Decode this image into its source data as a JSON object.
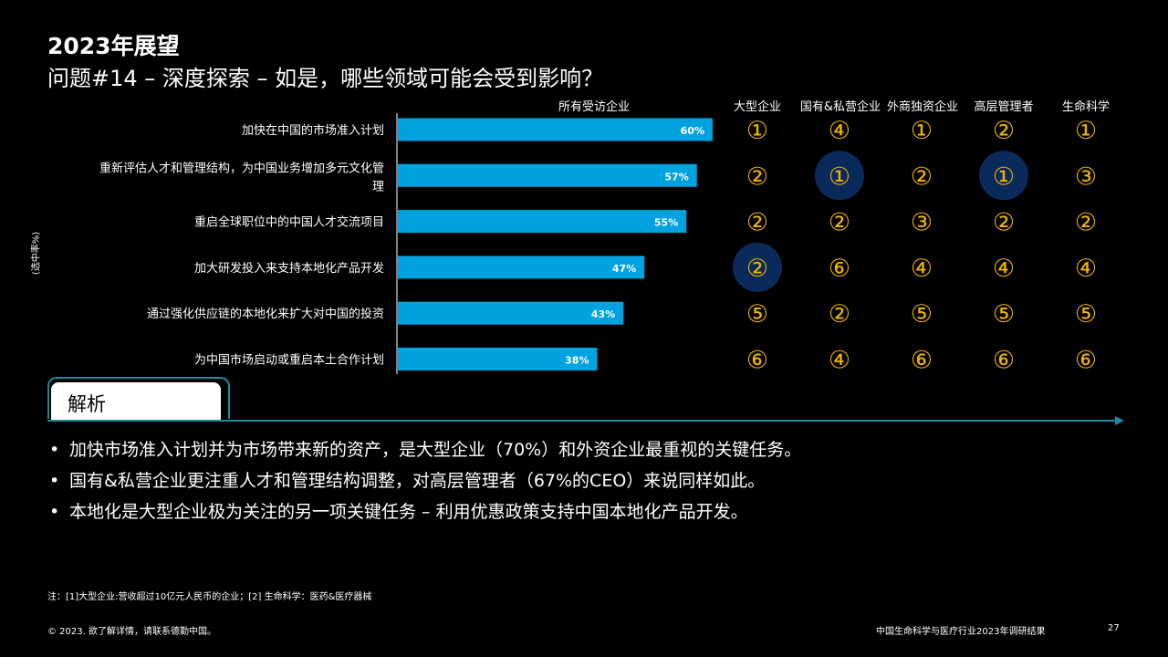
{
  "header": {
    "title_line1": "2023年展望",
    "title_line2": "问题#14 – 深度探索 – 如是，哪些领域可能会受到影响？"
  },
  "y_axis_note": "(选中率%)",
  "columns": {
    "all": "所有受访企业",
    "c1": "大型企业",
    "c2": "国有&私营企业",
    "c3": "外商独资企业",
    "c4": "高层管理者",
    "c5": "生命科学"
  },
  "chart_data": {
    "type": "bar",
    "orientation": "horizontal",
    "title": "所有受访企业",
    "categories": [
      [
        "加快在中国的市场准入计划"
      ],
      [
        "重新评估人才和管理结构，为中国业务增加多元文化管",
        "理"
      ],
      [
        "重启全球职位中的中国人才交流项目"
      ],
      [
        "加大研发投入来支持本地化产品开发"
      ],
      [
        "通过强化供应链的本地化来扩大对中国的投资"
      ],
      [
        "为中国市场启动或重启本土合作计划"
      ]
    ],
    "values": [
      60,
      57,
      55,
      47,
      43,
      38
    ],
    "value_labels": [
      "60%",
      "57%",
      "55%",
      "47%",
      "43%",
      "38%"
    ],
    "xlim": [
      0,
      100
    ],
    "ylabel": "(选中率%)",
    "bar_color": "#00a3e0",
    "rank_color": "#f2b400",
    "highlight_color": "#0b2a5c",
    "rank_table": {
      "columns": [
        "大型企业",
        "国有&私营企业",
        "外商独资企业",
        "高层管理者",
        "生命科学"
      ],
      "rows": [
        [
          "①",
          "④",
          "①",
          "②",
          "①"
        ],
        [
          "②",
          "①",
          "②",
          "①",
          "③"
        ],
        [
          "②",
          "②",
          "③",
          "②",
          "②"
        ],
        [
          "②",
          "⑥",
          "④",
          "④",
          "④"
        ],
        [
          "⑤",
          "②",
          "⑤",
          "⑤",
          "⑤"
        ],
        [
          "⑥",
          "④",
          "⑥",
          "⑥",
          "⑥"
        ]
      ],
      "highlighted": [
        [
          1,
          1
        ],
        [
          1,
          3
        ],
        [
          3,
          0
        ]
      ]
    }
  },
  "analysis": {
    "label": "解析",
    "bullets": [
      "加快市场准入计划并为市场带来新的资产，是大型企业（70%）和外资企业最重视的关键任务。",
      "国有&私营企业更注重人才和管理结构调整，对高层管理者（67%的CEO）来说同样如此。",
      "本地化是大型企业极为关注的另一项关键任务 – 利用优惠政策支持中国本地化产品开发。"
    ]
  },
  "footer": {
    "note": "注：[1]大型企业:营收超过10亿元人民币的企业；[2] 生命科学：医药&医疗器械",
    "copyright": "© 2023. 欲了解详情，请联系德勤中国。",
    "report_title": "中国生命科学与医疗行业2023年调研结果",
    "page": "27"
  }
}
